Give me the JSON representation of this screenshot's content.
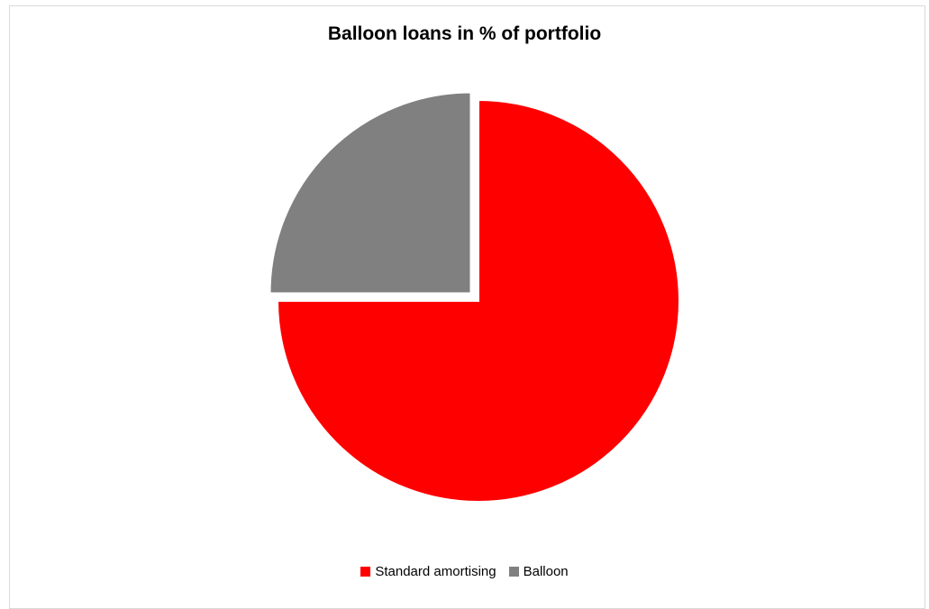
{
  "chart_data": {
    "type": "pie",
    "title": "Balloon loans in % of portfolio",
    "slices": [
      {
        "name": "Standard amortising",
        "value": 75,
        "color": "#ff0000"
      },
      {
        "name": "Balloon",
        "value": 25,
        "color": "#808080"
      }
    ],
    "exploded_slice": "Balloon",
    "legend_position": "bottom"
  }
}
